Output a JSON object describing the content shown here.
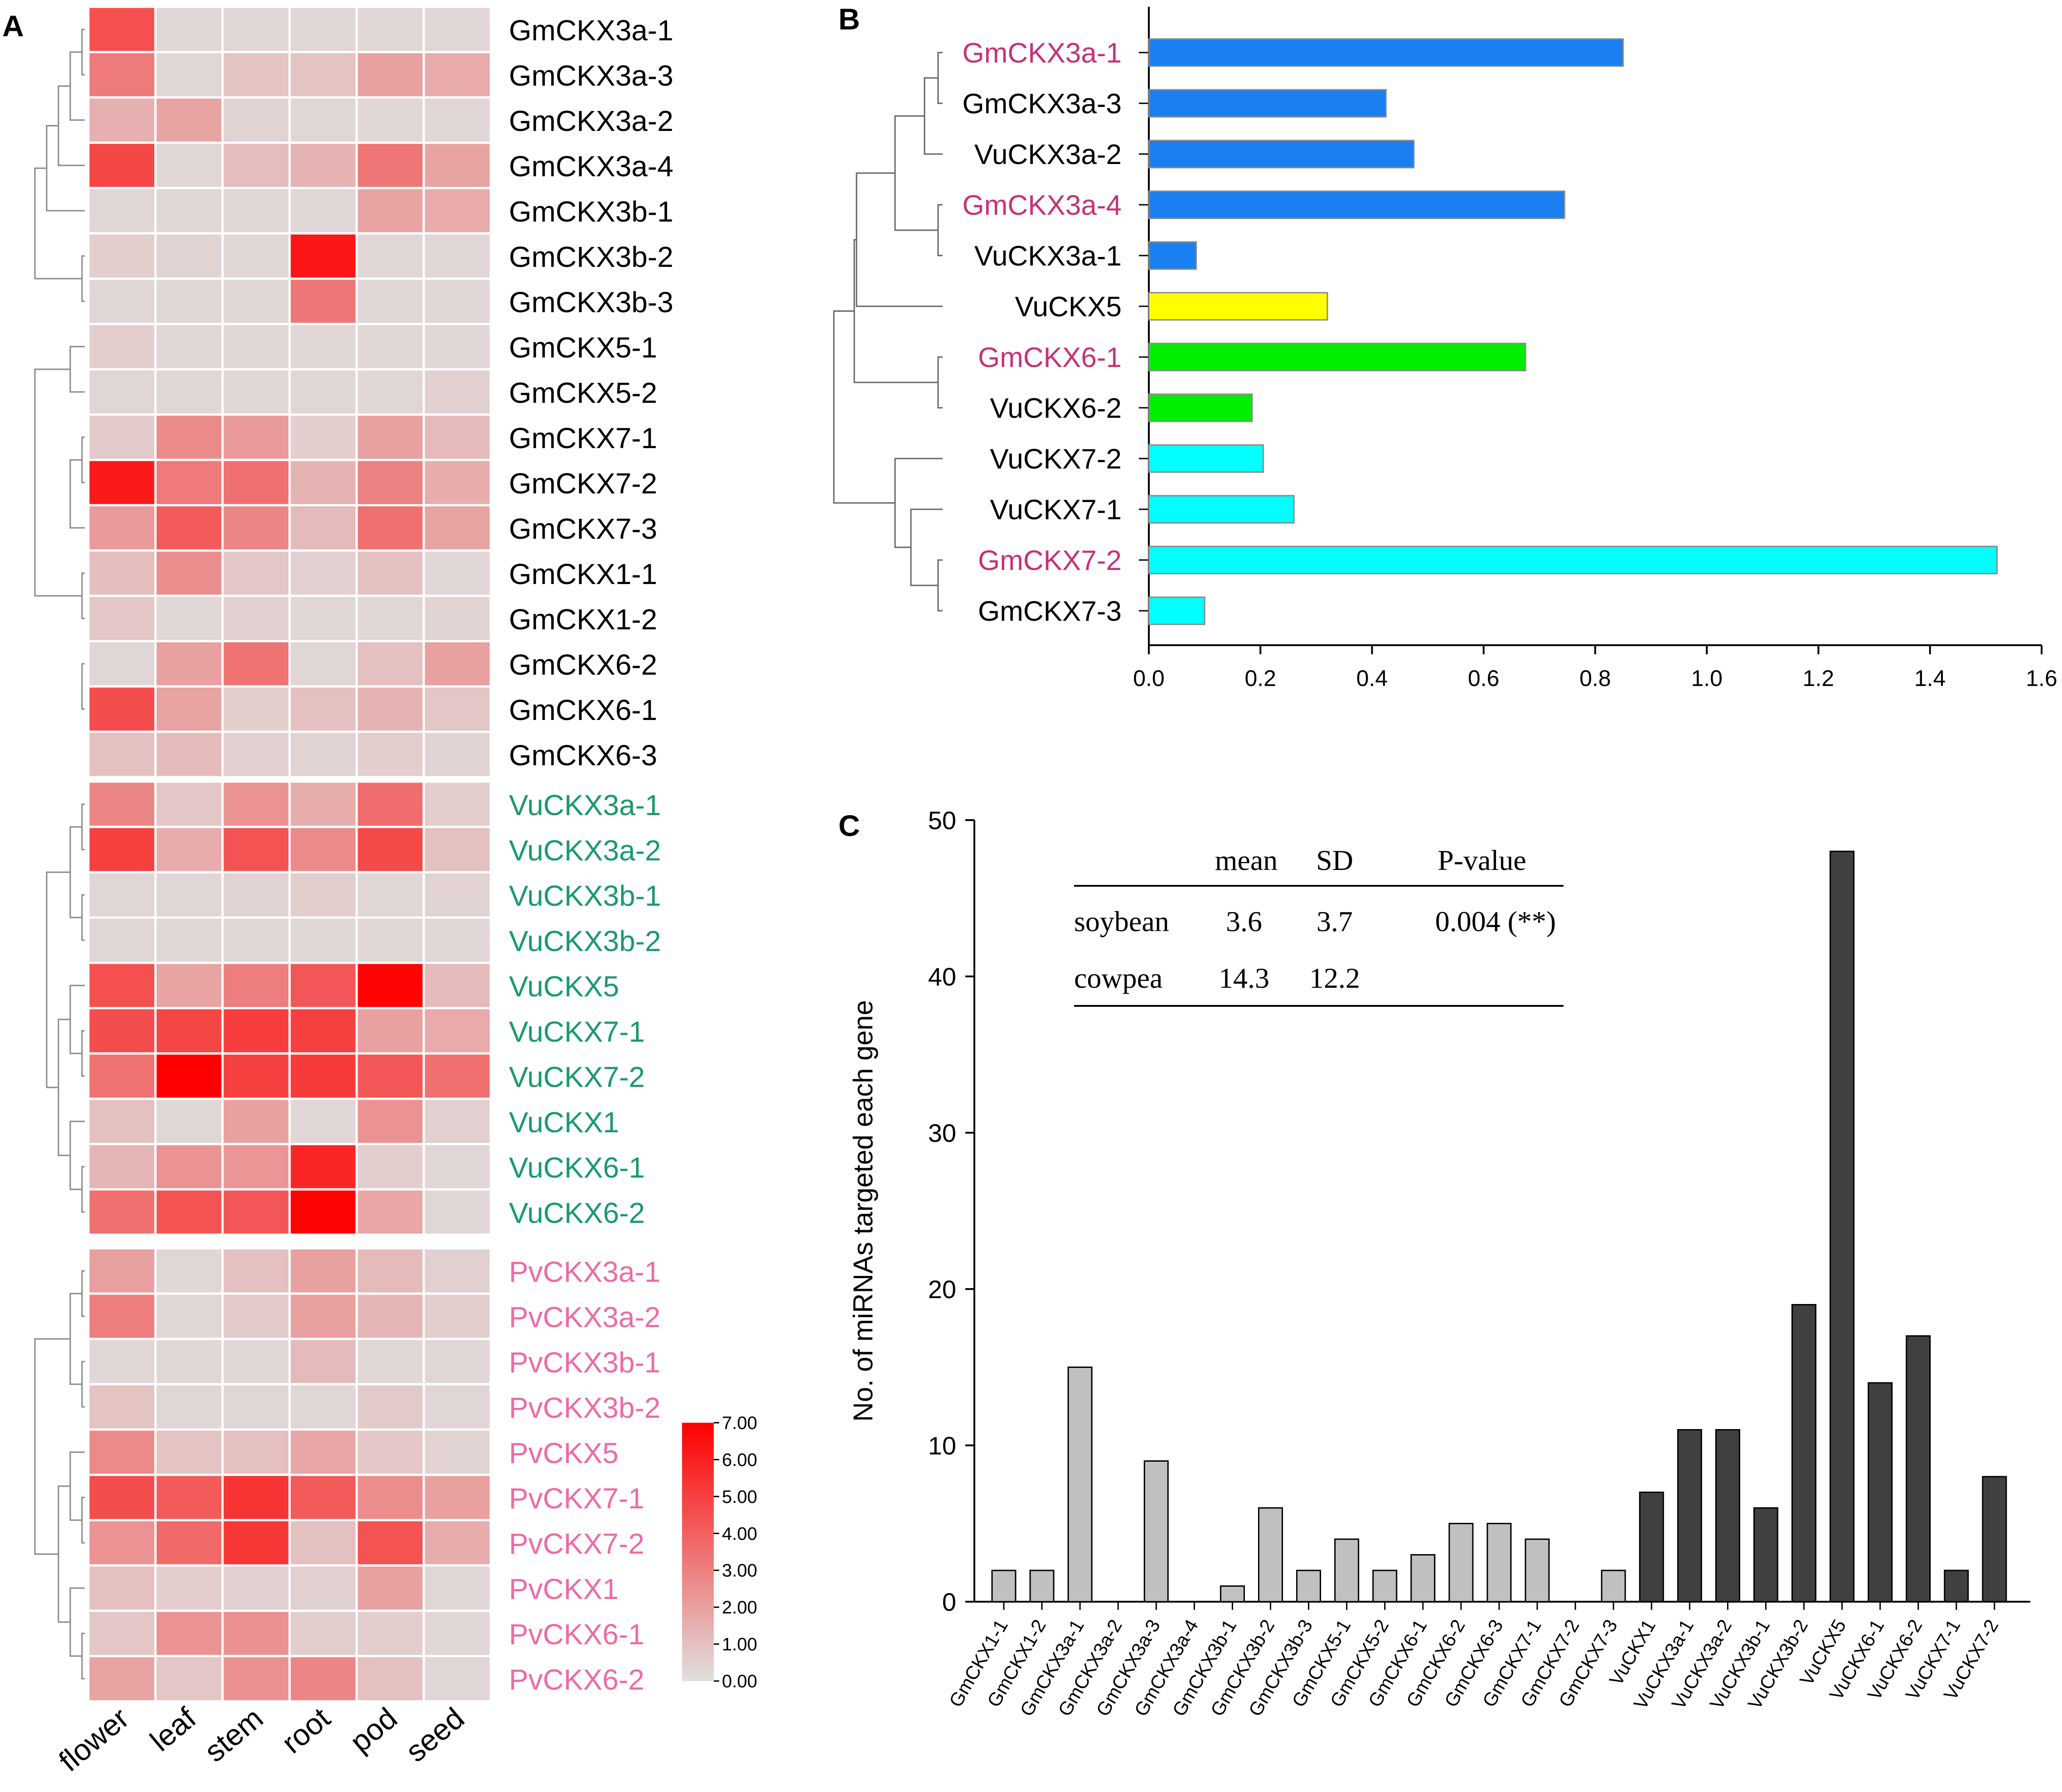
{
  "colors": {
    "soy_label": "#000000",
    "cowpea_label": "#1a9a6c",
    "bean_label": "#ee6aa7",
    "highlight_label": "#c8307a",
    "blue_bar": "#1a7ff0",
    "yellow_bar": "#ffff00",
    "green_bar": "#00ee00",
    "cyan_bar": "#00ffff",
    "soy_bar": "#c0c0c0",
    "cowpea_bar": "#404040",
    "heat_low": "#e0e0e0",
    "heat_high": "#ff0000"
  },
  "chart_data": [
    {
      "panel": "A",
      "type": "heatmap",
      "columns": [
        "flower",
        "leaf",
        "stem",
        "root",
        "pod",
        "seed"
      ],
      "colorbar": {
        "min": 0,
        "max": 7,
        "ticks": [
          "7.00",
          "6.00",
          "5.00",
          "4.00",
          "3.00",
          "2.00",
          "1.00",
          "0.00"
        ]
      },
      "groups": [
        {
          "species": "soybean",
          "color_key": "soy_label",
          "rows": [
            {
              "label": "GmCKX3a-1",
              "values": [
                4.5,
                0.3,
                0.3,
                0.3,
                0.3,
                0.3
              ]
            },
            {
              "label": "GmCKX3a-3",
              "values": [
                3.2,
                0.3,
                0.9,
                0.9,
                2.0,
                1.7
              ]
            },
            {
              "label": "GmCKX3a-2",
              "values": [
                1.5,
                1.9,
                0.4,
                0.3,
                0.3,
                0.3
              ]
            },
            {
              "label": "GmCKX3a-4",
              "values": [
                4.8,
                0.3,
                1.1,
                1.4,
                3.3,
                1.9
              ]
            },
            {
              "label": "GmCKX3b-1",
              "values": [
                0.3,
                0.3,
                0.3,
                0.3,
                1.9,
                1.7
              ]
            },
            {
              "label": "GmCKX3b-2",
              "values": [
                0.6,
                0.4,
                0.3,
                6.3,
                0.3,
                0.3
              ]
            },
            {
              "label": "GmCKX3b-3",
              "values": [
                0.3,
                0.3,
                0.3,
                3.3,
                0.3,
                0.3
              ]
            },
            {
              "label": "GmCKX5-1",
              "values": [
                0.6,
                0.3,
                0.3,
                0.3,
                0.3,
                0.3
              ]
            },
            {
              "label": "GmCKX5-2",
              "values": [
                0.3,
                0.3,
                0.3,
                0.3,
                0.3,
                0.5
              ]
            },
            {
              "label": "GmCKX7-1",
              "values": [
                0.7,
                2.7,
                2.2,
                0.6,
                2.0,
                1.2
              ]
            },
            {
              "label": "GmCKX7-2",
              "values": [
                6.2,
                3.2,
                3.5,
                1.4,
                3.0,
                1.6
              ]
            },
            {
              "label": "GmCKX7-3",
              "values": [
                2.2,
                4.2,
                2.8,
                1.2,
                3.5,
                1.9
              ]
            },
            {
              "label": "GmCKX1-1",
              "values": [
                1.1,
                2.6,
                0.8,
                0.5,
                1.0,
                0.3
              ]
            },
            {
              "label": "GmCKX1-2",
              "values": [
                0.8,
                0.3,
                0.5,
                0.3,
                0.3,
                0.4
              ]
            },
            {
              "label": "GmCKX6-2",
              "values": [
                0.3,
                2.0,
                3.4,
                0.3,
                1.0,
                2.0
              ]
            },
            {
              "label": "GmCKX6-1",
              "values": [
                4.6,
                1.9,
                0.6,
                1.0,
                1.4,
                0.8
              ]
            },
            {
              "label": "GmCKX6-3",
              "values": [
                1.0,
                1.2,
                0.5,
                0.4,
                0.6,
                0.4
              ]
            }
          ]
        },
        {
          "species": "cowpea",
          "color_key": "cowpea_label",
          "rows": [
            {
              "label": "VuCKX3a-1",
              "values": [
                2.8,
                0.8,
                2.4,
                1.6,
                3.6,
                0.6
              ]
            },
            {
              "label": "VuCKX3a-2",
              "values": [
                5.0,
                1.6,
                4.4,
                2.7,
                4.7,
                1.0
              ]
            },
            {
              "label": "VuCKX3b-1",
              "values": [
                0.3,
                0.3,
                0.4,
                0.6,
                0.3,
                0.4
              ]
            },
            {
              "label": "VuCKX3b-2",
              "values": [
                0.3,
                0.3,
                0.3,
                0.3,
                0.3,
                0.3
              ]
            },
            {
              "label": "VuCKX5",
              "values": [
                4.5,
                1.9,
                3.1,
                4.3,
                6.9,
                1.2
              ]
            },
            {
              "label": "VuCKX7-1",
              "values": [
                4.6,
                4.8,
                5.1,
                5.0,
                2.0,
                1.7
              ]
            },
            {
              "label": "VuCKX7-2",
              "values": [
                3.4,
                7.0,
                5.0,
                5.2,
                4.3,
                3.5
              ]
            },
            {
              "label": "VuCKX1",
              "values": [
                1.0,
                0.3,
                2.0,
                0.3,
                2.4,
                0.5
              ]
            },
            {
              "label": "VuCKX6-1",
              "values": [
                1.3,
                2.4,
                2.3,
                5.8,
                0.6,
                0.3
              ]
            },
            {
              "label": "VuCKX6-2",
              "values": [
                3.5,
                4.4,
                4.3,
                6.9,
                1.8,
                0.3
              ]
            }
          ]
        },
        {
          "species": "common bean",
          "color_key": "bean_label",
          "rows": [
            {
              "label": "PvCKX3a-1",
              "values": [
                2.0,
                0.3,
                1.0,
                2.0,
                1.2,
                0.5
              ]
            },
            {
              "label": "PvCKX3a-2",
              "values": [
                3.1,
                0.3,
                0.7,
                2.0,
                1.3,
                0.6
              ]
            },
            {
              "label": "PvCKX3b-1",
              "values": [
                0.3,
                0.3,
                0.3,
                1.2,
                0.3,
                0.3
              ]
            },
            {
              "label": "PvCKX3b-2",
              "values": [
                0.9,
                0.3,
                0.3,
                0.3,
                0.7,
                0.3
              ]
            },
            {
              "label": "PvCKX5",
              "values": [
                2.7,
                0.9,
                1.0,
                1.8,
                0.8,
                0.4
              ]
            },
            {
              "label": "PvCKX7-1",
              "values": [
                4.6,
                4.2,
                5.4,
                4.2,
                2.6,
                2.0
              ]
            },
            {
              "label": "PvCKX7-2",
              "values": [
                2.4,
                3.7,
                5.3,
                1.0,
                4.4,
                1.6
              ]
            },
            {
              "label": "PvCKX1",
              "values": [
                1.0,
                0.6,
                0.5,
                0.5,
                2.0,
                0.3
              ]
            },
            {
              "label": "PvCKX6-1",
              "values": [
                0.8,
                2.4,
                2.5,
                0.6,
                0.6,
                0.3
              ]
            },
            {
              "label": "PvCKX6-2",
              "values": [
                1.9,
                0.8,
                2.5,
                2.8,
                1.0,
                0.3
              ]
            }
          ]
        }
      ]
    },
    {
      "panel": "B",
      "type": "bar",
      "orientation": "horizontal",
      "categories": [
        "GmCKX3a-1",
        "GmCKX3a-3",
        "VuCKX3a-2",
        "GmCKX3a-4",
        "VuCKX3a-1",
        "VuCKX5",
        "GmCKX6-1",
        "VuCKX6-2",
        "VuCKX7-2",
        "VuCKX7-1",
        "GmCKX7-2",
        "GmCKX7-3"
      ],
      "values": [
        0.85,
        0.425,
        0.475,
        0.745,
        0.085,
        0.32,
        0.675,
        0.185,
        0.205,
        0.26,
        1.52,
        0.1
      ],
      "bar_color_keys": [
        "blue_bar",
        "blue_bar",
        "blue_bar",
        "blue_bar",
        "blue_bar",
        "yellow_bar",
        "green_bar",
        "green_bar",
        "cyan_bar",
        "cyan_bar",
        "cyan_bar",
        "cyan_bar"
      ],
      "highlighted": [
        true,
        false,
        false,
        true,
        false,
        false,
        true,
        false,
        false,
        false,
        true,
        false
      ],
      "xlim": [
        0,
        1.6
      ],
      "xticks": [
        "0.0",
        "0.2",
        "0.4",
        "0.6",
        "0.8",
        "1.0",
        "1.2",
        "1.4",
        "1.6"
      ]
    },
    {
      "panel": "C",
      "type": "bar",
      "orientation": "vertical",
      "ylabel": "No. of miRNAs targeted each gene",
      "ylim": [
        0,
        50
      ],
      "yticks": [
        "0",
        "10",
        "20",
        "30",
        "40",
        "50"
      ],
      "categories": [
        "GmCKX1-1",
        "GmCKX1-2",
        "GmCKX3a-1",
        "GmCKX3a-2",
        "GmCKX3a-3",
        "GmCKX3a-4",
        "GmCKX3b-1",
        "GmCKX3b-2",
        "GmCKX3b-3",
        "GmCKX5-1",
        "GmCKX5-2",
        "GmCKX6-1",
        "GmCKX6-2",
        "GmCKX6-3",
        "GmCKX7-1",
        "GmCKX7-2",
        "GmCKX7-3",
        "VuCKX1",
        "VuCKX3a-1",
        "VuCKX3a-2",
        "VuCKX3b-1",
        "VuCKX3b-2",
        "VuCKX5",
        "VuCKX6-1",
        "VuCKX6-2",
        "VuCKX7-1",
        "VuCKX7-2"
      ],
      "values": [
        2,
        2,
        15,
        0,
        9,
        0,
        1,
        6,
        2,
        4,
        2,
        3,
        5,
        5,
        4,
        0,
        2,
        7,
        11,
        11,
        6,
        19,
        48,
        14,
        17,
        2,
        8
      ],
      "series_color_keys": [
        "soy_bar",
        "soy_bar",
        "soy_bar",
        "soy_bar",
        "soy_bar",
        "soy_bar",
        "soy_bar",
        "soy_bar",
        "soy_bar",
        "soy_bar",
        "soy_bar",
        "soy_bar",
        "soy_bar",
        "soy_bar",
        "soy_bar",
        "soy_bar",
        "soy_bar",
        "cowpea_bar",
        "cowpea_bar",
        "cowpea_bar",
        "cowpea_bar",
        "cowpea_bar",
        "cowpea_bar",
        "cowpea_bar",
        "cowpea_bar",
        "cowpea_bar",
        "cowpea_bar"
      ],
      "table": {
        "headers": [
          "mean",
          "SD",
          "P-value"
        ],
        "rows": [
          {
            "name": "soybean",
            "mean": "3.6",
            "sd": "3.7",
            "p": "0.004 (**)"
          },
          {
            "name": "cowpea",
            "mean": "14.3",
            "sd": "12.2",
            "p": ""
          }
        ]
      }
    }
  ],
  "panel_labels": {
    "a": "A",
    "b": "B",
    "c": "C"
  }
}
